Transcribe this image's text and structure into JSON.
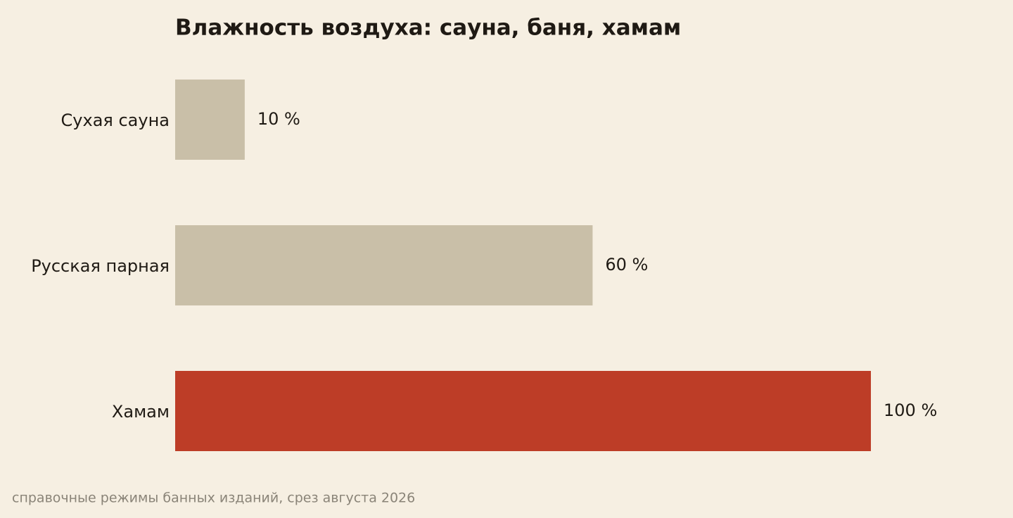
{
  "chart_data": {
    "type": "bar",
    "orientation": "horizontal",
    "title": "Влажность воздуха: сауна, баня, хамам",
    "categories": [
      "Сухая сауна",
      "Русская парная",
      "Хамам"
    ],
    "values": [
      10,
      60,
      100
    ],
    "value_labels": [
      "10 %",
      "60 %",
      "100 %"
    ],
    "colors": [
      "#c9bfa8",
      "#c9bfa8",
      "#bd3d27"
    ],
    "note": "справочные режимы банных изданий, срез августа 2026"
  }
}
